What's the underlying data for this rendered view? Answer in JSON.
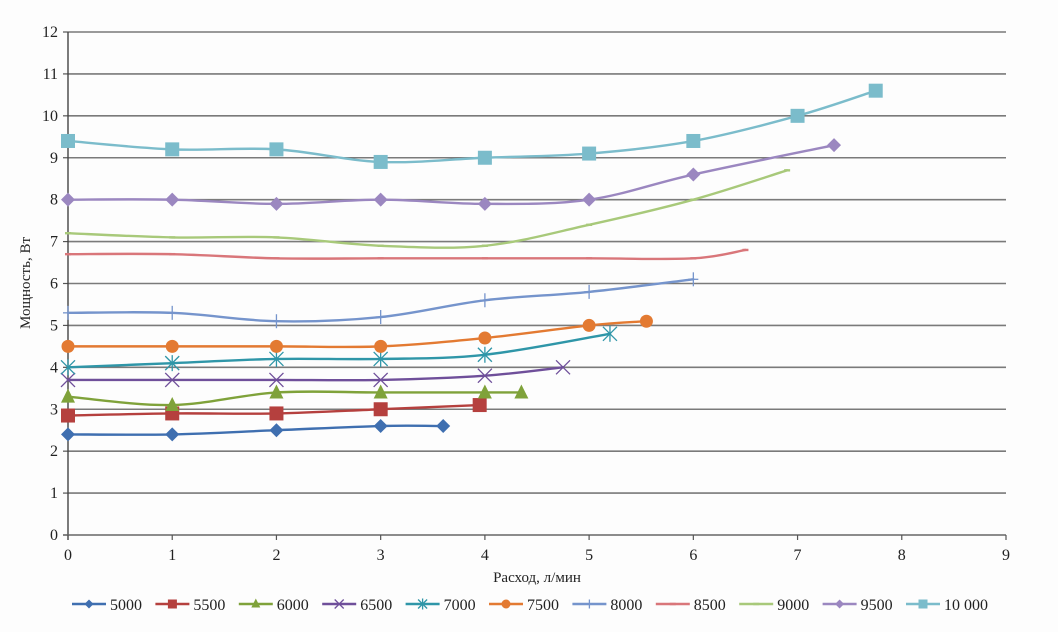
{
  "chart_data": {
    "type": "line",
    "title": "",
    "xlabel": "Расход, л/мин",
    "ylabel": "Мощность, Вт",
    "xlim": [
      0,
      9
    ],
    "ylim": [
      0,
      12
    ],
    "x_ticks": [
      "0",
      "1",
      "2",
      "3",
      "4",
      "5",
      "6",
      "7",
      "8",
      "9"
    ],
    "y_ticks": [
      "0",
      "1",
      "2",
      "3",
      "4",
      "5",
      "6",
      "7",
      "8",
      "9",
      "10",
      "11",
      "12"
    ],
    "grid": "horizontal",
    "legend_position": "bottom",
    "series": [
      {
        "name": "5000",
        "color": "#3f6fb0",
        "marker": "diamond",
        "x": [
          0,
          1,
          2,
          3,
          3.6
        ],
        "y": [
          2.4,
          2.4,
          2.5,
          2.6,
          2.6
        ]
      },
      {
        "name": "5500",
        "color": "#b5403e",
        "marker": "square",
        "x": [
          0,
          1,
          2,
          3,
          3.95
        ],
        "y": [
          2.85,
          2.9,
          2.9,
          3.0,
          3.1
        ]
      },
      {
        "name": "6000",
        "color": "#7fa23a",
        "marker": "triangle",
        "x": [
          0,
          1,
          2,
          3,
          4,
          4.35
        ],
        "y": [
          3.3,
          3.1,
          3.4,
          3.4,
          3.4,
          3.4
        ]
      },
      {
        "name": "6500",
        "color": "#6f4f9a",
        "marker": "x",
        "x": [
          0,
          1,
          2,
          3,
          4,
          4.75
        ],
        "y": [
          3.7,
          3.7,
          3.7,
          3.7,
          3.8,
          4.0
        ]
      },
      {
        "name": "7000",
        "color": "#2f96a8",
        "marker": "star",
        "x": [
          0,
          1,
          2,
          3,
          4,
          5.2
        ],
        "y": [
          4.0,
          4.1,
          4.2,
          4.2,
          4.3,
          4.8
        ]
      },
      {
        "name": "7500",
        "color": "#e37a32",
        "marker": "circle",
        "x": [
          0,
          1,
          2,
          3,
          4,
          5,
          5.55
        ],
        "y": [
          4.5,
          4.5,
          4.5,
          4.5,
          4.7,
          5.0,
          5.1
        ]
      },
      {
        "name": "8000",
        "color": "#7594cc",
        "marker": "plus",
        "x": [
          0,
          1,
          2,
          3,
          4,
          5,
          6
        ],
        "y": [
          5.3,
          5.3,
          5.1,
          5.2,
          5.6,
          5.8,
          6.1
        ]
      },
      {
        "name": "8500",
        "color": "#d9767a",
        "marker": "dash",
        "x": [
          0,
          1,
          2,
          3,
          4,
          5,
          6,
          6.5
        ],
        "y": [
          6.7,
          6.7,
          6.6,
          6.6,
          6.6,
          6.6,
          6.6,
          6.8
        ]
      },
      {
        "name": "9000",
        "color": "#a8c97a",
        "marker": "dash",
        "x": [
          0,
          1,
          2,
          3,
          4,
          5,
          6,
          6.9
        ],
        "y": [
          7.2,
          7.1,
          7.1,
          6.9,
          6.9,
          7.4,
          8.0,
          8.7
        ]
      },
      {
        "name": "9500",
        "color": "#9b87c0",
        "marker": "diamond",
        "x": [
          0,
          1,
          2,
          3,
          4,
          5,
          6,
          7.35
        ],
        "y": [
          8.0,
          8.0,
          7.9,
          8.0,
          7.9,
          8.0,
          8.6,
          9.3
        ]
      },
      {
        "name": "10 000",
        "color": "#7bbccb",
        "marker": "square",
        "x": [
          0,
          1,
          2,
          3,
          4,
          5,
          6,
          7,
          7.75
        ],
        "y": [
          9.4,
          9.2,
          9.2,
          8.9,
          9.0,
          9.1,
          9.4,
          10.0,
          10.6
        ]
      }
    ]
  }
}
